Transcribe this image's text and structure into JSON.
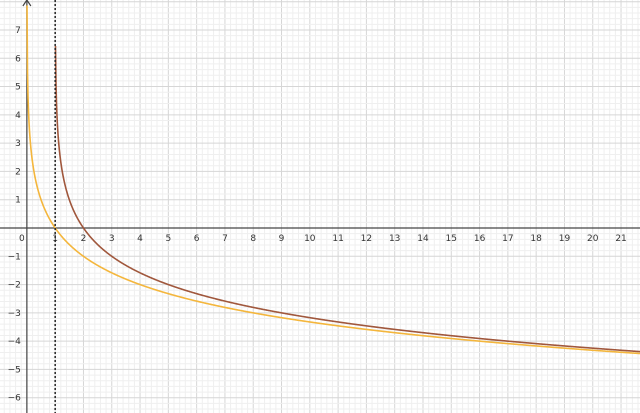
{
  "chart_data": {
    "type": "line",
    "title": "",
    "xlabel": "",
    "ylabel": "",
    "xlim": [
      -0.95,
      21.67
    ],
    "ylim": [
      -6.54,
      8.06
    ],
    "grid": true,
    "minor_grid_step": 0.2,
    "x_ticks": [
      0,
      1,
      2,
      3,
      4,
      5,
      6,
      7,
      8,
      9,
      10,
      11,
      12,
      13,
      14,
      15,
      16,
      17,
      18,
      19,
      20,
      21
    ],
    "y_ticks": [
      -6,
      -5,
      -4,
      -3,
      -2,
      -1,
      1,
      2,
      3,
      4,
      5,
      6,
      7
    ],
    "series": [
      {
        "expr": "-log2(x)",
        "color": "#f4b63c",
        "x": [
          0.05,
          0.25,
          0.5,
          1,
          2,
          4,
          8,
          16,
          21
        ],
        "y": [
          4.32,
          2,
          1,
          0,
          -1,
          -2,
          -3,
          -4,
          -4.39
        ]
      },
      {
        "expr": "-log2(x-1)",
        "color": "#a0573c",
        "x": [
          1.02,
          1.25,
          1.5,
          2,
          3,
          5,
          9,
          17,
          21
        ],
        "y": [
          5.64,
          2,
          1,
          0,
          -1,
          -2,
          -3,
          -4,
          -4.32
        ]
      }
    ],
    "vertical_line": {
      "x": 1,
      "style": "dotted",
      "color": "#222222"
    },
    "colors": {
      "axis": "#444444",
      "major_grid": "#d6d6d6",
      "minor_grid": "#efefef"
    }
  }
}
